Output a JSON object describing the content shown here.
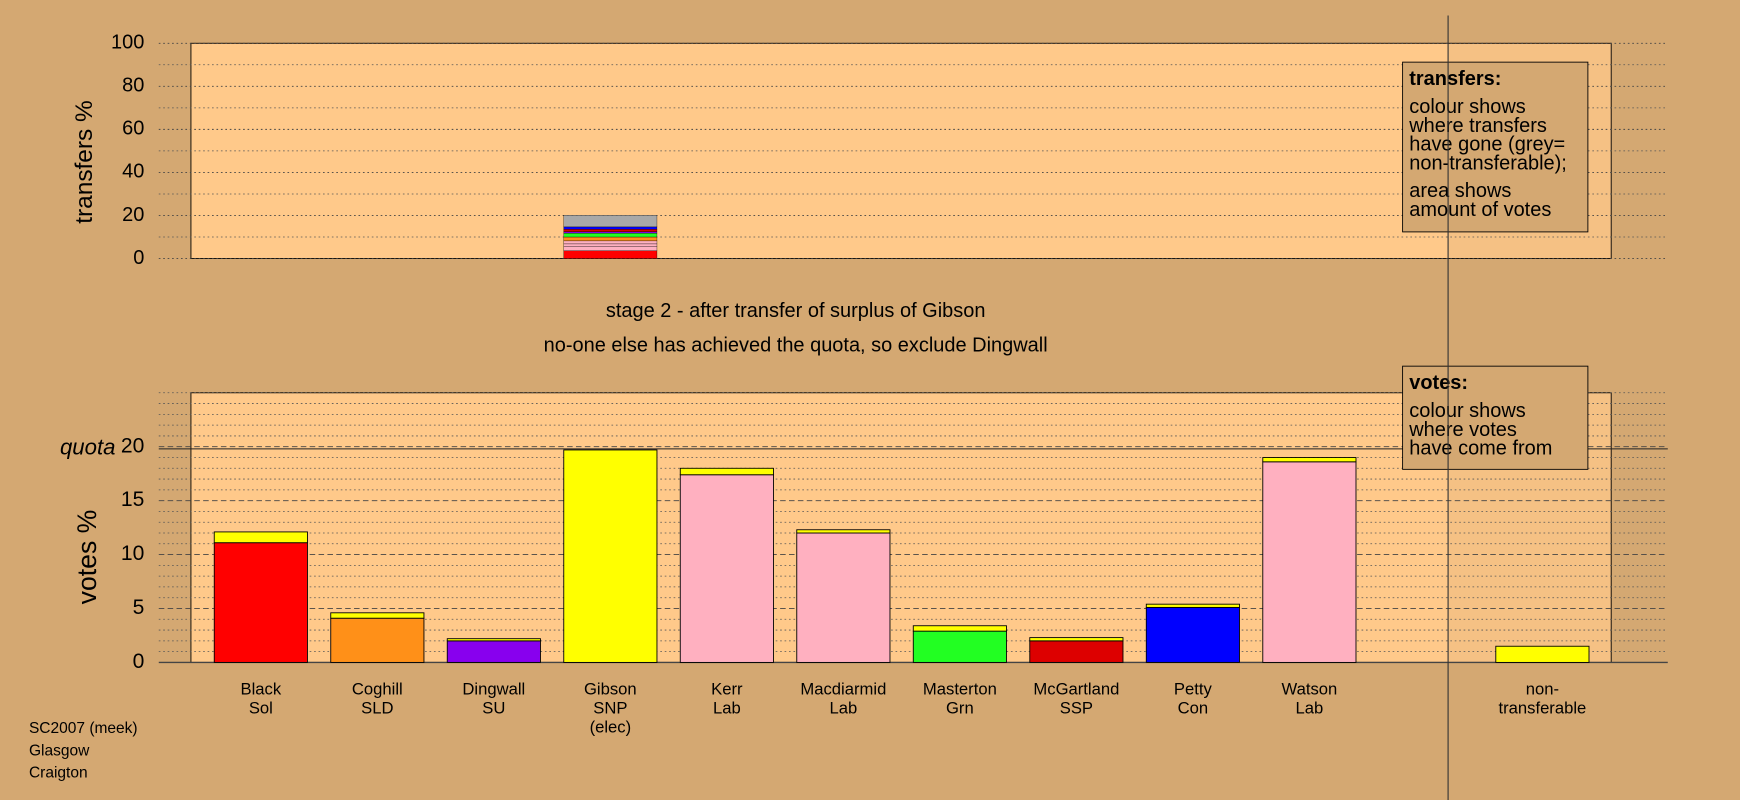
{
  "chart_data": [
    {
      "type": "bar",
      "stacked": true,
      "ylabel": "transfers %",
      "ylim": [
        0,
        100
      ],
      "yticks": [
        0,
        20,
        40,
        60,
        80,
        100
      ],
      "grid": true,
      "minor_per_major": 2,
      "series": [
        {
          "color": "#ff0000",
          "values": [
            3.6
          ]
        },
        {
          "color": "#ffb0c0",
          "values": [
            2.1
          ]
        },
        {
          "color": "#ffb0c0",
          "values": [
            1.1
          ]
        },
        {
          "color": "#ffb0c0",
          "values": [
            1.4
          ]
        },
        {
          "color": "#ff9018",
          "values": [
            1.8
          ]
        },
        {
          "color": "#22ff22",
          "values": [
            1.8
          ]
        },
        {
          "color": "#8800ee",
          "values": [
            0.7
          ]
        },
        {
          "color": "#dd0000",
          "values": [
            1.1
          ]
        },
        {
          "color": "#0000ff",
          "values": [
            1.1
          ]
        },
        {
          "color": "#a8a8a8",
          "values": [
            5.4
          ]
        }
      ],
      "legend": {
        "title": "transfers:",
        "paragraphs": [
          [
            "colour shows",
            "where transfers",
            "have gone (grey=",
            "non-transferable);"
          ],
          [
            "area shows",
            "amount of votes"
          ]
        ]
      }
    },
    {
      "type": "bar",
      "stacked": true,
      "title": "stage 2 - after transfer of surplus of Gibson",
      "subtitle": "no-one else has achieved the quota, so exclude Dingwall",
      "ylabel": "votes %",
      "ylim": [
        0,
        25
      ],
      "yticks": [
        0,
        5,
        10,
        15,
        20
      ],
      "grid": true,
      "minor_per_major": 5,
      "quota": {
        "label": "quota",
        "value": 19.8
      },
      "categories": [
        [
          "Black",
          "Sol"
        ],
        [
          "Coghill",
          "SLD"
        ],
        [
          "Dingwall",
          "SU"
        ],
        [
          "Gibson",
          "SNP",
          "(elec)"
        ],
        [
          "Kerr",
          "Lab"
        ],
        [
          "Macdiarmid",
          "Lab"
        ],
        [
          "Masterton",
          "Grn"
        ],
        [
          "McGartland",
          "SSP"
        ],
        [
          "Petty",
          "Con"
        ],
        [
          "Watson",
          "Lab"
        ],
        null,
        [
          "non-",
          "transferable"
        ]
      ],
      "series": [
        {
          "colors": [
            "#ff0000",
            "#ff9018",
            "#8800ee",
            "#ffff00",
            "#ffb0c0",
            "#ffb0c0",
            "#22ff22",
            "#dd0000",
            "#0000ff",
            "#ffb0c0",
            null,
            null
          ],
          "values": [
            11.1,
            4.1,
            2.0,
            19.7,
            17.4,
            12.0,
            2.9,
            2.0,
            5.1,
            18.6,
            null,
            null
          ]
        },
        {
          "color": "#ffff00",
          "values": [
            1.0,
            0.5,
            0.2,
            null,
            0.6,
            0.3,
            0.5,
            0.3,
            0.3,
            0.4,
            null,
            1.5
          ]
        }
      ],
      "legend": {
        "title": "votes:",
        "paragraphs": [
          [
            "colour shows",
            "where votes",
            "have come from"
          ]
        ]
      }
    }
  ],
  "footer": [
    "SC2007 (meek)",
    "Glasgow",
    "Craigton"
  ]
}
